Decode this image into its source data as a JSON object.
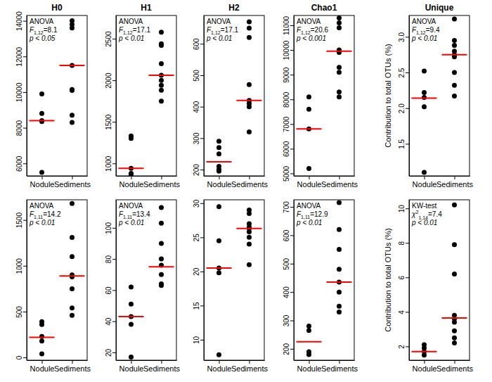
{
  "chart_data": [
    {
      "type": "scatter",
      "title": "H0",
      "categories": [
        "Nodule",
        "Sediments"
      ],
      "ylim": [
        5300,
        14300
      ],
      "yticks": [
        6000,
        8000,
        10000,
        12000,
        14000
      ],
      "annotation": {
        "test": "ANOVA",
        "symbol": "F",
        "df": "1,12",
        "equals": "=8.1",
        "p": "p < 0.05"
      },
      "series": [
        {
          "type": "scatter",
          "marker": "circle",
          "color": "#000000",
          "values": [
            [
              9900,
              8800,
              8400,
              8350,
              5500
            ],
            [
              14000,
              13800,
              13600,
              11500,
              10150,
              10100,
              8700,
              8300
            ]
          ]
        },
        {
          "type": "median",
          "line_style": "solid",
          "color": "#ff0000",
          "values": [
            8400,
            11500
          ]
        }
      ]
    },
    {
      "type": "scatter",
      "title": "H1",
      "categories": [
        "Nodule",
        "Sediments"
      ],
      "ylim": [
        850,
        2780
      ],
      "yticks": [
        1000,
        1500,
        2000,
        2500
      ],
      "annotation": {
        "test": "ANOVA",
        "symbol": "F",
        "df": "1,12",
        "equals": "=17.1",
        "p": "p < 0.01"
      },
      "series": [
        {
          "type": "scatter",
          "marker": "circle",
          "color": "#000000",
          "values": [
            [
              1330,
              1300,
              940,
              880,
              870
            ],
            [
              2580,
              2440,
              2420,
              2200,
              2060,
              2000,
              1940,
              1880,
              1750
            ]
          ]
        },
        {
          "type": "median",
          "line_style": "solid",
          "color": "#ff0000",
          "values": [
            940,
            2060
          ]
        }
      ]
    },
    {
      "type": "scatter",
      "title": "H2",
      "categories": [
        "Nodule",
        "Sediments"
      ],
      "ylim": [
        180,
        690
      ],
      "yticks": [
        200,
        300,
        400,
        500,
        600
      ],
      "annotation": {
        "test": "ANOVA",
        "symbol": "F",
        "df": "1,12",
        "equals": "=17.1",
        "p": "p < 0.01"
      },
      "series": [
        {
          "type": "scatter",
          "marker": "circle",
          "color": "#000000",
          "values": [
            [
              290,
              270,
              250,
              210,
              200,
              195
            ],
            [
              670,
              650,
              620,
              470,
              420,
              410,
              400,
              320
            ]
          ]
        },
        {
          "type": "median",
          "line_style": "solid",
          "color": "#ff0000",
          "values": [
            225,
            420
          ]
        }
      ]
    },
    {
      "type": "scatter",
      "title": "Chao1",
      "categories": [
        "Nodule",
        "Sediments"
      ],
      "ylim": [
        4900,
        11400
      ],
      "yticks": [
        5000,
        6000,
        7000,
        8000,
        9000,
        10000,
        11000
      ],
      "annotation": {
        "test": "ANOVA",
        "symbol": "F",
        "df": "1,12",
        "equals": "=20.6",
        "p": "p < 0.001"
      },
      "series": [
        {
          "type": "scatter",
          "marker": "circle",
          "color": "#000000",
          "values": [
            [
              8100,
              7600,
              6800,
              5200
            ],
            [
              11300,
              11100,
              10900,
              10000,
              9900,
              9300,
              9100,
              8300,
              8100
            ]
          ]
        },
        {
          "type": "median",
          "line_style": "solid",
          "color": "#ff0000",
          "values": [
            6800,
            9950
          ]
        }
      ]
    },
    {
      "type": "scatter",
      "title": "Unique",
      "y_label": "Contribution to total OTUs (%)",
      "categories": [
        "Nodule",
        "Sediments"
      ],
      "ylim": [
        1.05,
        3.3
      ],
      "yticks": [
        1.5,
        {
          "value": 2,
          "label": "2.0"
        },
        2.5,
        {
          "value": 3,
          "label": "3.0"
        }
      ],
      "annotation": {
        "test": "ANOVA",
        "symbol": "F",
        "df": "1,12",
        "equals": "=9.4",
        "p": "p < 0.01"
      },
      "series": [
        {
          "type": "scatter",
          "marker": "circle",
          "color": "#000000",
          "values": [
            [
              2.52,
              2.22,
              2.15,
              2.02,
              1.1
            ],
            [
              3.25,
              2.95,
              2.88,
              2.8,
              2.75,
              2.72,
              2.5,
              2.32,
              2.17
            ]
          ]
        },
        {
          "type": "median",
          "line_style": "solid",
          "color": "#ff0000",
          "values": [
            2.14,
            2.75
          ]
        }
      ]
    },
    {
      "type": "scatter",
      "categories": [
        "Nodule",
        "Sediments"
      ],
      "ylim": [
        -30,
        1720
      ],
      "yticks": [
        0,
        500,
        1000,
        1500
      ],
      "annotation": {
        "test": "ANOVA",
        "symbol": "F",
        "df": "1,11",
        "equals": "=14.2",
        "p": "p < 0.01"
      },
      "series": [
        {
          "type": "scatter",
          "marker": "circle",
          "color": "#000000",
          "values": [
            [
              390,
              360,
              230,
              180,
              40
            ],
            [
              1680,
              1310,
              1100,
              900,
              880,
              750,
              540,
              460
            ]
          ]
        },
        {
          "type": "median",
          "line_style": "solid",
          "color": "#ff0000",
          "values": [
            220,
            890
          ]
        }
      ]
    },
    {
      "type": "scatter",
      "categories": [
        "Nodule",
        "Sediments"
      ],
      "ylim": [
        15,
        118
      ],
      "yticks": [
        20,
        40,
        60,
        80,
        100
      ],
      "annotation": {
        "test": "ANOVA",
        "symbol": "F",
        "df": "1,11",
        "equals": "=13.4",
        "p": "p < 0.01"
      },
      "series": [
        {
          "type": "scatter",
          "marker": "circle",
          "color": "#000000",
          "values": [
            [
              62,
              51,
              43,
              38,
              17
            ],
            [
              113,
              103,
              90,
              80,
              76,
              70,
              64,
              63
            ]
          ]
        },
        {
          "type": "median",
          "line_style": "solid",
          "color": "#ff0000",
          "values": [
            43,
            75
          ]
        }
      ]
    },
    {
      "type": "scatter",
      "categories": [
        "Nodule",
        "Sediments"
      ],
      "ylim": [
        7,
        30.5
      ],
      "yticks": [
        10,
        15,
        20,
        25,
        30
      ],
      "series": [
        {
          "type": "scatter",
          "marker": "circle",
          "color": "#000000",
          "values": [
            [
              29.5,
              24.5,
              20.5,
              19.8,
              7.8
            ],
            [
              29,
              28.5,
              27,
              26.5,
              26.3,
              25.8,
              25,
              24,
              21
            ]
          ]
        },
        {
          "type": "median",
          "line_style": "solid",
          "color": "#ff0000",
          "values": [
            20.5,
            26.3
          ]
        }
      ]
    },
    {
      "type": "scatter",
      "categories": [
        "Nodule",
        "Sediments"
      ],
      "ylim": [
        160,
        725
      ],
      "yticks": [
        200,
        300,
        400,
        500,
        600,
        700
      ],
      "annotation": {
        "test": "ANOVA",
        "symbol": "F",
        "df": "1,11",
        "equals": "=12.9",
        "p": "p < 0.01"
      },
      "series": [
        {
          "type": "scatter",
          "marker": "circle",
          "color": "#000000",
          "values": [
            [
              280,
              265,
              190,
              180
            ],
            [
              715,
              620,
              550,
              480,
              435,
              400,
              350,
              330
            ]
          ]
        },
        {
          "type": "median",
          "line_style": "solid",
          "color": "#ff0000",
          "values": [
            225,
            435
          ]
        }
      ]
    },
    {
      "type": "scatter",
      "y_label": "Contribution to total OTUs (%)",
      "categories": [
        "Nodule",
        "Sediments"
      ],
      "ylim": [
        1.2,
        10.5
      ],
      "yticks": [
        2,
        4,
        6,
        8,
        10
      ],
      "annotation": {
        "test": "KW-test",
        "symbol": "χ",
        "sup": "2",
        "df": "1,14",
        "equals": "=7.4",
        "p": "p < 0.01"
      },
      "series": [
        {
          "type": "scatter",
          "marker": "circle",
          "color": "#000000",
          "values": [
            [
              2.1,
              1.9,
              1.7,
              1.5
            ],
            [
              10.2,
              7.9,
              6.2,
              3.8,
              3.6,
              3.4,
              2.9,
              2.5,
              2.2
            ]
          ]
        },
        {
          "type": "median",
          "line_style": "solid",
          "color": "#ff0000",
          "values": [
            1.7,
            3.65
          ]
        }
      ]
    }
  ]
}
